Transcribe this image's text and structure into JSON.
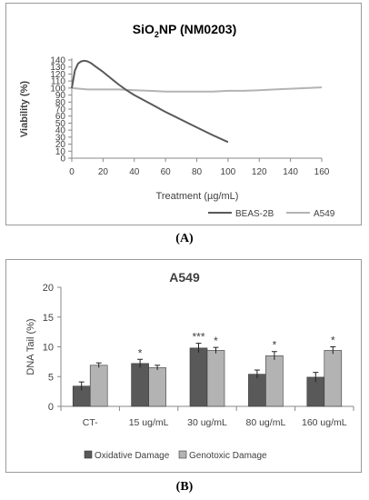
{
  "chart_data": [
    {
      "type": "line",
      "title_main": "SiO",
      "title_sub": "2",
      "title_rest": "NP (NM0203)",
      "xlabel": "Treatment (µg/mL)",
      "ylabel": "Viability (%)",
      "xlim": [
        0,
        160
      ],
      "ylim": [
        0,
        140
      ],
      "x_ticks": [
        "0",
        "20",
        "40",
        "60",
        "80",
        "100",
        "120",
        "140",
        "160"
      ],
      "y_ticks": [
        "0",
        "10",
        "20",
        "30",
        "40",
        "50",
        "60",
        "70",
        "80",
        "90",
        "100",
        "110",
        "120",
        "130",
        "140"
      ],
      "legend_position": "bottom-right",
      "series": [
        {
          "name": "BEAS-2B",
          "color": "#595959",
          "x": [
            0,
            2,
            4,
            6,
            8,
            10,
            12,
            15,
            20,
            25,
            30,
            35,
            40,
            50,
            60,
            70,
            80,
            90,
            100
          ],
          "y": [
            100,
            125,
            135,
            138,
            139,
            138,
            136,
            131,
            123,
            114,
            105,
            97,
            90,
            78,
            66,
            55,
            44,
            33,
            23
          ]
        },
        {
          "name": "A549",
          "color": "#b3b3b3",
          "x": [
            0,
            10,
            20,
            30,
            40,
            50,
            60,
            70,
            80,
            90,
            100,
            110,
            120,
            130,
            140,
            150,
            160
          ],
          "y": [
            100,
            98,
            98,
            98,
            97,
            96,
            95,
            95,
            95,
            95,
            96,
            96,
            97,
            98,
            99,
            100,
            101
          ]
        }
      ]
    },
    {
      "type": "bar",
      "title": "A549",
      "ylabel": "DNA Tail  (%)",
      "ylim": [
        0,
        20
      ],
      "y_ticks": [
        "0",
        "5",
        "10",
        "15",
        "20"
      ],
      "categories": [
        "CT-",
        "15 ug/mL",
        "30 ug/mL",
        "80 ug/mL",
        "160 ug/mL"
      ],
      "legend_position": "bottom",
      "series": [
        {
          "name": "Oxidative Damage",
          "color": "#595959",
          "values": [
            3.4,
            7.2,
            9.8,
            5.4,
            4.9
          ],
          "errors": [
            0.7,
            0.7,
            0.8,
            0.7,
            0.8
          ],
          "significance": [
            "",
            "*",
            "***",
            "",
            ""
          ]
        },
        {
          "name": "Genotoxic Damage",
          "color": "#b3b3b3",
          "values": [
            6.9,
            6.5,
            9.4,
            8.5,
            9.4
          ],
          "errors": [
            0.4,
            0.4,
            0.5,
            0.7,
            0.6
          ],
          "significance": [
            "",
            "",
            "*",
            "*",
            "*"
          ]
        }
      ]
    }
  ],
  "panel_labels": {
    "a": "(A)",
    "b": "(B)"
  }
}
